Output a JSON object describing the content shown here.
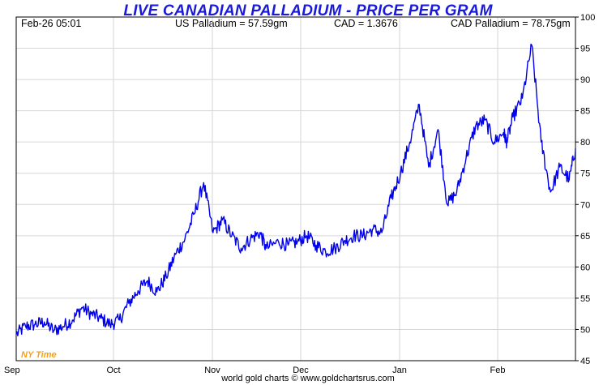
{
  "chart_data": {
    "type": "line",
    "title": "LIVE CANADIAN PALLADIUM - PRICE PER GRAM",
    "info": {
      "timestamp": "Feb-26  05:01",
      "us_price": "US Palladium = 57.59gm",
      "cad_rate": "CAD = 1.3676",
      "cad_price": "CAD Palladium = 78.75gm"
    },
    "timezone_label": "NY Time",
    "footer": "world gold charts © www.goldchartsrus.com",
    "xlabel": "",
    "ylabel": "",
    "x_ticks": [
      "Sep",
      "Oct",
      "Nov",
      "Dec",
      "Jan",
      "Feb"
    ],
    "y_ticks": [
      "45",
      "50",
      "55",
      "60",
      "65",
      "70",
      "75",
      "80",
      "85",
      "90",
      "95",
      "100"
    ],
    "ylim": [
      45,
      100
    ],
    "xlim": [
      0,
      179
    ],
    "grid": true,
    "series": [
      {
        "color": "#0000ee",
        "x": [
          0,
          3,
          6,
          9,
          12,
          15,
          18,
          21,
          24,
          27,
          30,
          33,
          36,
          39,
          42,
          45,
          48,
          51,
          54,
          57,
          60,
          63,
          66,
          69,
          72,
          75,
          78,
          80,
          84,
          87,
          90,
          93,
          96,
          99,
          102,
          105,
          108,
          111,
          114,
          117,
          120,
          123,
          126,
          129,
          132,
          135,
          138,
          141,
          144,
          147,
          150,
          153,
          156,
          157,
          159,
          162,
          165,
          168,
          171,
          174,
          177,
          179
        ],
        "values": [
          49.2,
          50.5,
          50.8,
          51.2,
          49.8,
          50.5,
          51.5,
          53.5,
          52.5,
          51.8,
          50.8,
          51.5,
          54.2,
          56.2,
          57.8,
          56.0,
          58.5,
          62.0,
          64.5,
          68.5,
          73.5,
          65.5,
          67.5,
          65.0,
          63.0,
          64.5,
          65.5,
          63.0,
          64.0,
          63.5,
          64.0,
          65.0,
          63.5,
          62.5,
          63.0,
          64.2,
          65.0,
          65.0,
          66.0,
          65.5,
          71.0,
          75.0,
          80.0,
          86.0,
          76.0,
          82.0,
          70.0,
          72.0,
          77.5,
          82.5,
          83.5,
          80.0,
          81.5,
          80.0,
          84.0,
          87.0,
          95.5,
          80.0,
          72.0,
          76.0,
          74.0,
          79.0
        ]
      }
    ]
  }
}
